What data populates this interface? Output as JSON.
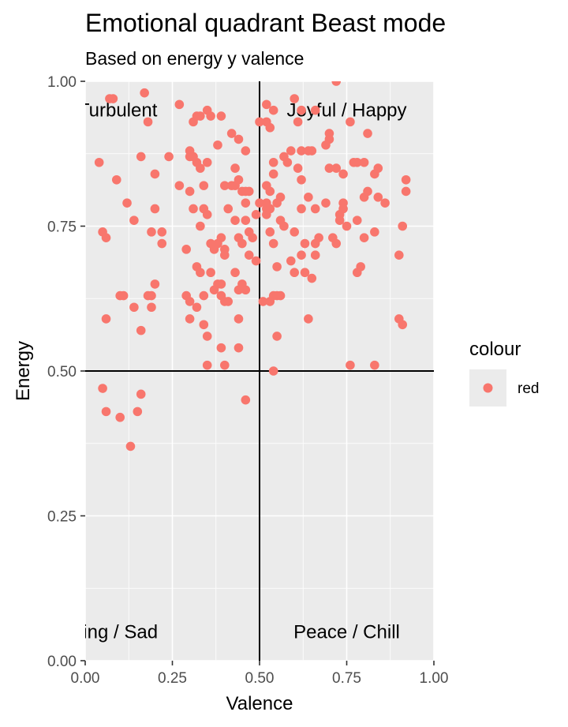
{
  "chart_data": {
    "type": "scatter",
    "title": "Emotional quadrant Beast mode",
    "subtitle": "Based on energy y valence",
    "xlabel": "Valence",
    "ylabel": "Energy",
    "xlim": [
      0,
      1
    ],
    "ylim": [
      0,
      1
    ],
    "xticks": [
      "0.00",
      "0.25",
      "0.50",
      "0.75",
      "1.00"
    ],
    "yticks": [
      "0.00",
      "0.25",
      "0.50",
      "0.75",
      "1.00"
    ],
    "grid": true,
    "reference_lines": {
      "x": 0.5,
      "y": 0.5
    },
    "annotations": [
      {
        "text": "Angry / Turbulent",
        "x": 0.0,
        "y": 0.95
      },
      {
        "text": "Joyful / Happy",
        "x": 0.75,
        "y": 0.95
      },
      {
        "text": "Depressing / Sad",
        "x": 0.0,
        "y": 0.05
      },
      {
        "text": "Peace / Chill",
        "x": 0.75,
        "y": 0.05
      }
    ],
    "legend": {
      "title": "colour",
      "entries": [
        "red"
      ],
      "position": "right"
    },
    "point_color": "#F8766D",
    "points": [
      [
        0.27,
        0.96
      ],
      [
        0.31,
        0.93
      ],
      [
        0.32,
        0.94
      ],
      [
        0.33,
        0.94
      ],
      [
        0.35,
        0.95
      ],
      [
        0.36,
        0.94
      ],
      [
        0.39,
        0.94
      ],
      [
        0.18,
        0.93
      ],
      [
        0.17,
        0.98
      ],
      [
        0.07,
        0.97
      ],
      [
        0.08,
        0.97
      ],
      [
        0.09,
        0.83
      ],
      [
        0.04,
        0.86
      ],
      [
        0.12,
        0.79
      ],
      [
        0.16,
        0.87
      ],
      [
        0.2,
        0.84
      ],
      [
        0.24,
        0.87
      ],
      [
        0.27,
        0.82
      ],
      [
        0.3,
        0.88
      ],
      [
        0.3,
        0.87
      ],
      [
        0.31,
        0.87
      ],
      [
        0.32,
        0.86
      ],
      [
        0.33,
        0.85
      ],
      [
        0.34,
        0.82
      ],
      [
        0.35,
        0.86
      ],
      [
        0.3,
        0.81
      ],
      [
        0.31,
        0.78
      ],
      [
        0.34,
        0.78
      ],
      [
        0.35,
        0.77
      ],
      [
        0.38,
        0.89
      ],
      [
        0.42,
        0.91
      ],
      [
        0.44,
        0.9
      ],
      [
        0.43,
        0.85
      ],
      [
        0.46,
        0.88
      ],
      [
        0.4,
        0.82
      ],
      [
        0.42,
        0.82
      ],
      [
        0.43,
        0.82
      ],
      [
        0.44,
        0.83
      ],
      [
        0.45,
        0.81
      ],
      [
        0.46,
        0.81
      ],
      [
        0.47,
        0.81
      ],
      [
        0.41,
        0.78
      ],
      [
        0.43,
        0.76
      ],
      [
        0.46,
        0.79
      ],
      [
        0.49,
        0.77
      ],
      [
        0.46,
        0.76
      ],
      [
        0.47,
        0.74
      ],
      [
        0.48,
        0.73
      ],
      [
        0.2,
        0.78
      ],
      [
        0.14,
        0.76
      ],
      [
        0.05,
        0.74
      ],
      [
        0.06,
        0.73
      ],
      [
        0.19,
        0.74
      ],
      [
        0.22,
        0.74
      ],
      [
        0.22,
        0.72
      ],
      [
        0.33,
        0.75
      ],
      [
        0.36,
        0.72
      ],
      [
        0.37,
        0.71
      ],
      [
        0.38,
        0.72
      ],
      [
        0.39,
        0.73
      ],
      [
        0.4,
        0.71
      ],
      [
        0.4,
        0.7
      ],
      [
        0.44,
        0.73
      ],
      [
        0.45,
        0.72
      ],
      [
        0.47,
        0.7
      ],
      [
        0.29,
        0.71
      ],
      [
        0.32,
        0.68
      ],
      [
        0.33,
        0.67
      ],
      [
        0.36,
        0.67
      ],
      [
        0.37,
        0.64
      ],
      [
        0.38,
        0.65
      ],
      [
        0.39,
        0.65
      ],
      [
        0.39,
        0.63
      ],
      [
        0.4,
        0.62
      ],
      [
        0.41,
        0.62
      ],
      [
        0.43,
        0.67
      ],
      [
        0.44,
        0.64
      ],
      [
        0.45,
        0.65
      ],
      [
        0.46,
        0.64
      ],
      [
        0.49,
        0.69
      ],
      [
        0.2,
        0.65
      ],
      [
        0.19,
        0.63
      ],
      [
        0.18,
        0.63
      ],
      [
        0.19,
        0.61
      ],
      [
        0.14,
        0.61
      ],
      [
        0.1,
        0.63
      ],
      [
        0.11,
        0.63
      ],
      [
        0.06,
        0.59
      ],
      [
        0.16,
        0.57
      ],
      [
        0.29,
        0.63
      ],
      [
        0.3,
        0.62
      ],
      [
        0.32,
        0.61
      ],
      [
        0.34,
        0.63
      ],
      [
        0.3,
        0.59
      ],
      [
        0.34,
        0.58
      ],
      [
        0.35,
        0.56
      ],
      [
        0.39,
        0.54
      ],
      [
        0.44,
        0.59
      ],
      [
        0.44,
        0.54
      ],
      [
        0.35,
        0.51
      ],
      [
        0.4,
        0.51
      ],
      [
        0.52,
        0.96
      ],
      [
        0.54,
        0.95
      ],
      [
        0.6,
        0.97
      ],
      [
        0.61,
        0.93
      ],
      [
        0.62,
        0.95
      ],
      [
        0.66,
        0.95
      ],
      [
        0.5,
        0.93
      ],
      [
        0.52,
        0.93
      ],
      [
        0.53,
        0.92
      ],
      [
        0.72,
        1.0
      ],
      [
        0.7,
        0.91
      ],
      [
        0.7,
        0.9
      ],
      [
        0.76,
        0.93
      ],
      [
        0.81,
        0.91
      ],
      [
        0.54,
        0.84
      ],
      [
        0.54,
        0.86
      ],
      [
        0.57,
        0.87
      ],
      [
        0.58,
        0.86
      ],
      [
        0.59,
        0.88
      ],
      [
        0.62,
        0.88
      ],
      [
        0.64,
        0.88
      ],
      [
        0.65,
        0.88
      ],
      [
        0.69,
        0.89
      ],
      [
        0.7,
        0.85
      ],
      [
        0.72,
        0.85
      ],
      [
        0.74,
        0.84
      ],
      [
        0.77,
        0.86
      ],
      [
        0.78,
        0.86
      ],
      [
        0.8,
        0.86
      ],
      [
        0.83,
        0.84
      ],
      [
        0.84,
        0.85
      ],
      [
        0.61,
        0.85
      ],
      [
        0.62,
        0.83
      ],
      [
        0.64,
        0.8
      ],
      [
        0.52,
        0.82
      ],
      [
        0.53,
        0.81
      ],
      [
        0.55,
        0.79
      ],
      [
        0.56,
        0.8
      ],
      [
        0.5,
        0.79
      ],
      [
        0.52,
        0.79
      ],
      [
        0.52,
        0.78
      ],
      [
        0.52,
        0.77
      ],
      [
        0.53,
        0.78
      ],
      [
        0.56,
        0.76
      ],
      [
        0.57,
        0.75
      ],
      [
        0.62,
        0.78
      ],
      [
        0.66,
        0.78
      ],
      [
        0.69,
        0.79
      ],
      [
        0.74,
        0.79
      ],
      [
        0.74,
        0.78
      ],
      [
        0.75,
        0.75
      ],
      [
        0.73,
        0.76
      ],
      [
        0.71,
        0.73
      ],
      [
        0.78,
        0.76
      ],
      [
        0.8,
        0.8
      ],
      [
        0.81,
        0.81
      ],
      [
        0.84,
        0.8
      ],
      [
        0.86,
        0.79
      ],
      [
        0.92,
        0.83
      ],
      [
        0.92,
        0.81
      ],
      [
        0.91,
        0.75
      ],
      [
        0.83,
        0.74
      ],
      [
        0.8,
        0.73
      ],
      [
        0.53,
        0.74
      ],
      [
        0.54,
        0.72
      ],
      [
        0.6,
        0.74
      ],
      [
        0.62,
        0.7
      ],
      [
        0.63,
        0.72
      ],
      [
        0.66,
        0.7
      ],
      [
        0.66,
        0.72
      ],
      [
        0.67,
        0.73
      ],
      [
        0.59,
        0.69
      ],
      [
        0.6,
        0.67
      ],
      [
        0.63,
        0.67
      ],
      [
        0.65,
        0.66
      ],
      [
        0.55,
        0.68
      ],
      [
        0.51,
        0.62
      ],
      [
        0.53,
        0.62
      ],
      [
        0.54,
        0.63
      ],
      [
        0.55,
        0.63
      ],
      [
        0.56,
        0.63
      ],
      [
        0.55,
        0.56
      ],
      [
        0.64,
        0.59
      ],
      [
        0.73,
        0.77
      ],
      [
        0.72,
        0.72
      ],
      [
        0.78,
        0.67
      ],
      [
        0.79,
        0.68
      ],
      [
        0.9,
        0.7
      ],
      [
        0.9,
        0.59
      ],
      [
        0.91,
        0.58
      ],
      [
        0.54,
        0.5
      ],
      [
        0.76,
        0.51
      ],
      [
        0.83,
        0.51
      ],
      [
        0.05,
        0.47
      ],
      [
        0.06,
        0.43
      ],
      [
        0.1,
        0.42
      ],
      [
        0.15,
        0.43
      ],
      [
        0.16,
        0.46
      ],
      [
        0.13,
        0.37
      ],
      [
        0.46,
        0.45
      ]
    ]
  }
}
